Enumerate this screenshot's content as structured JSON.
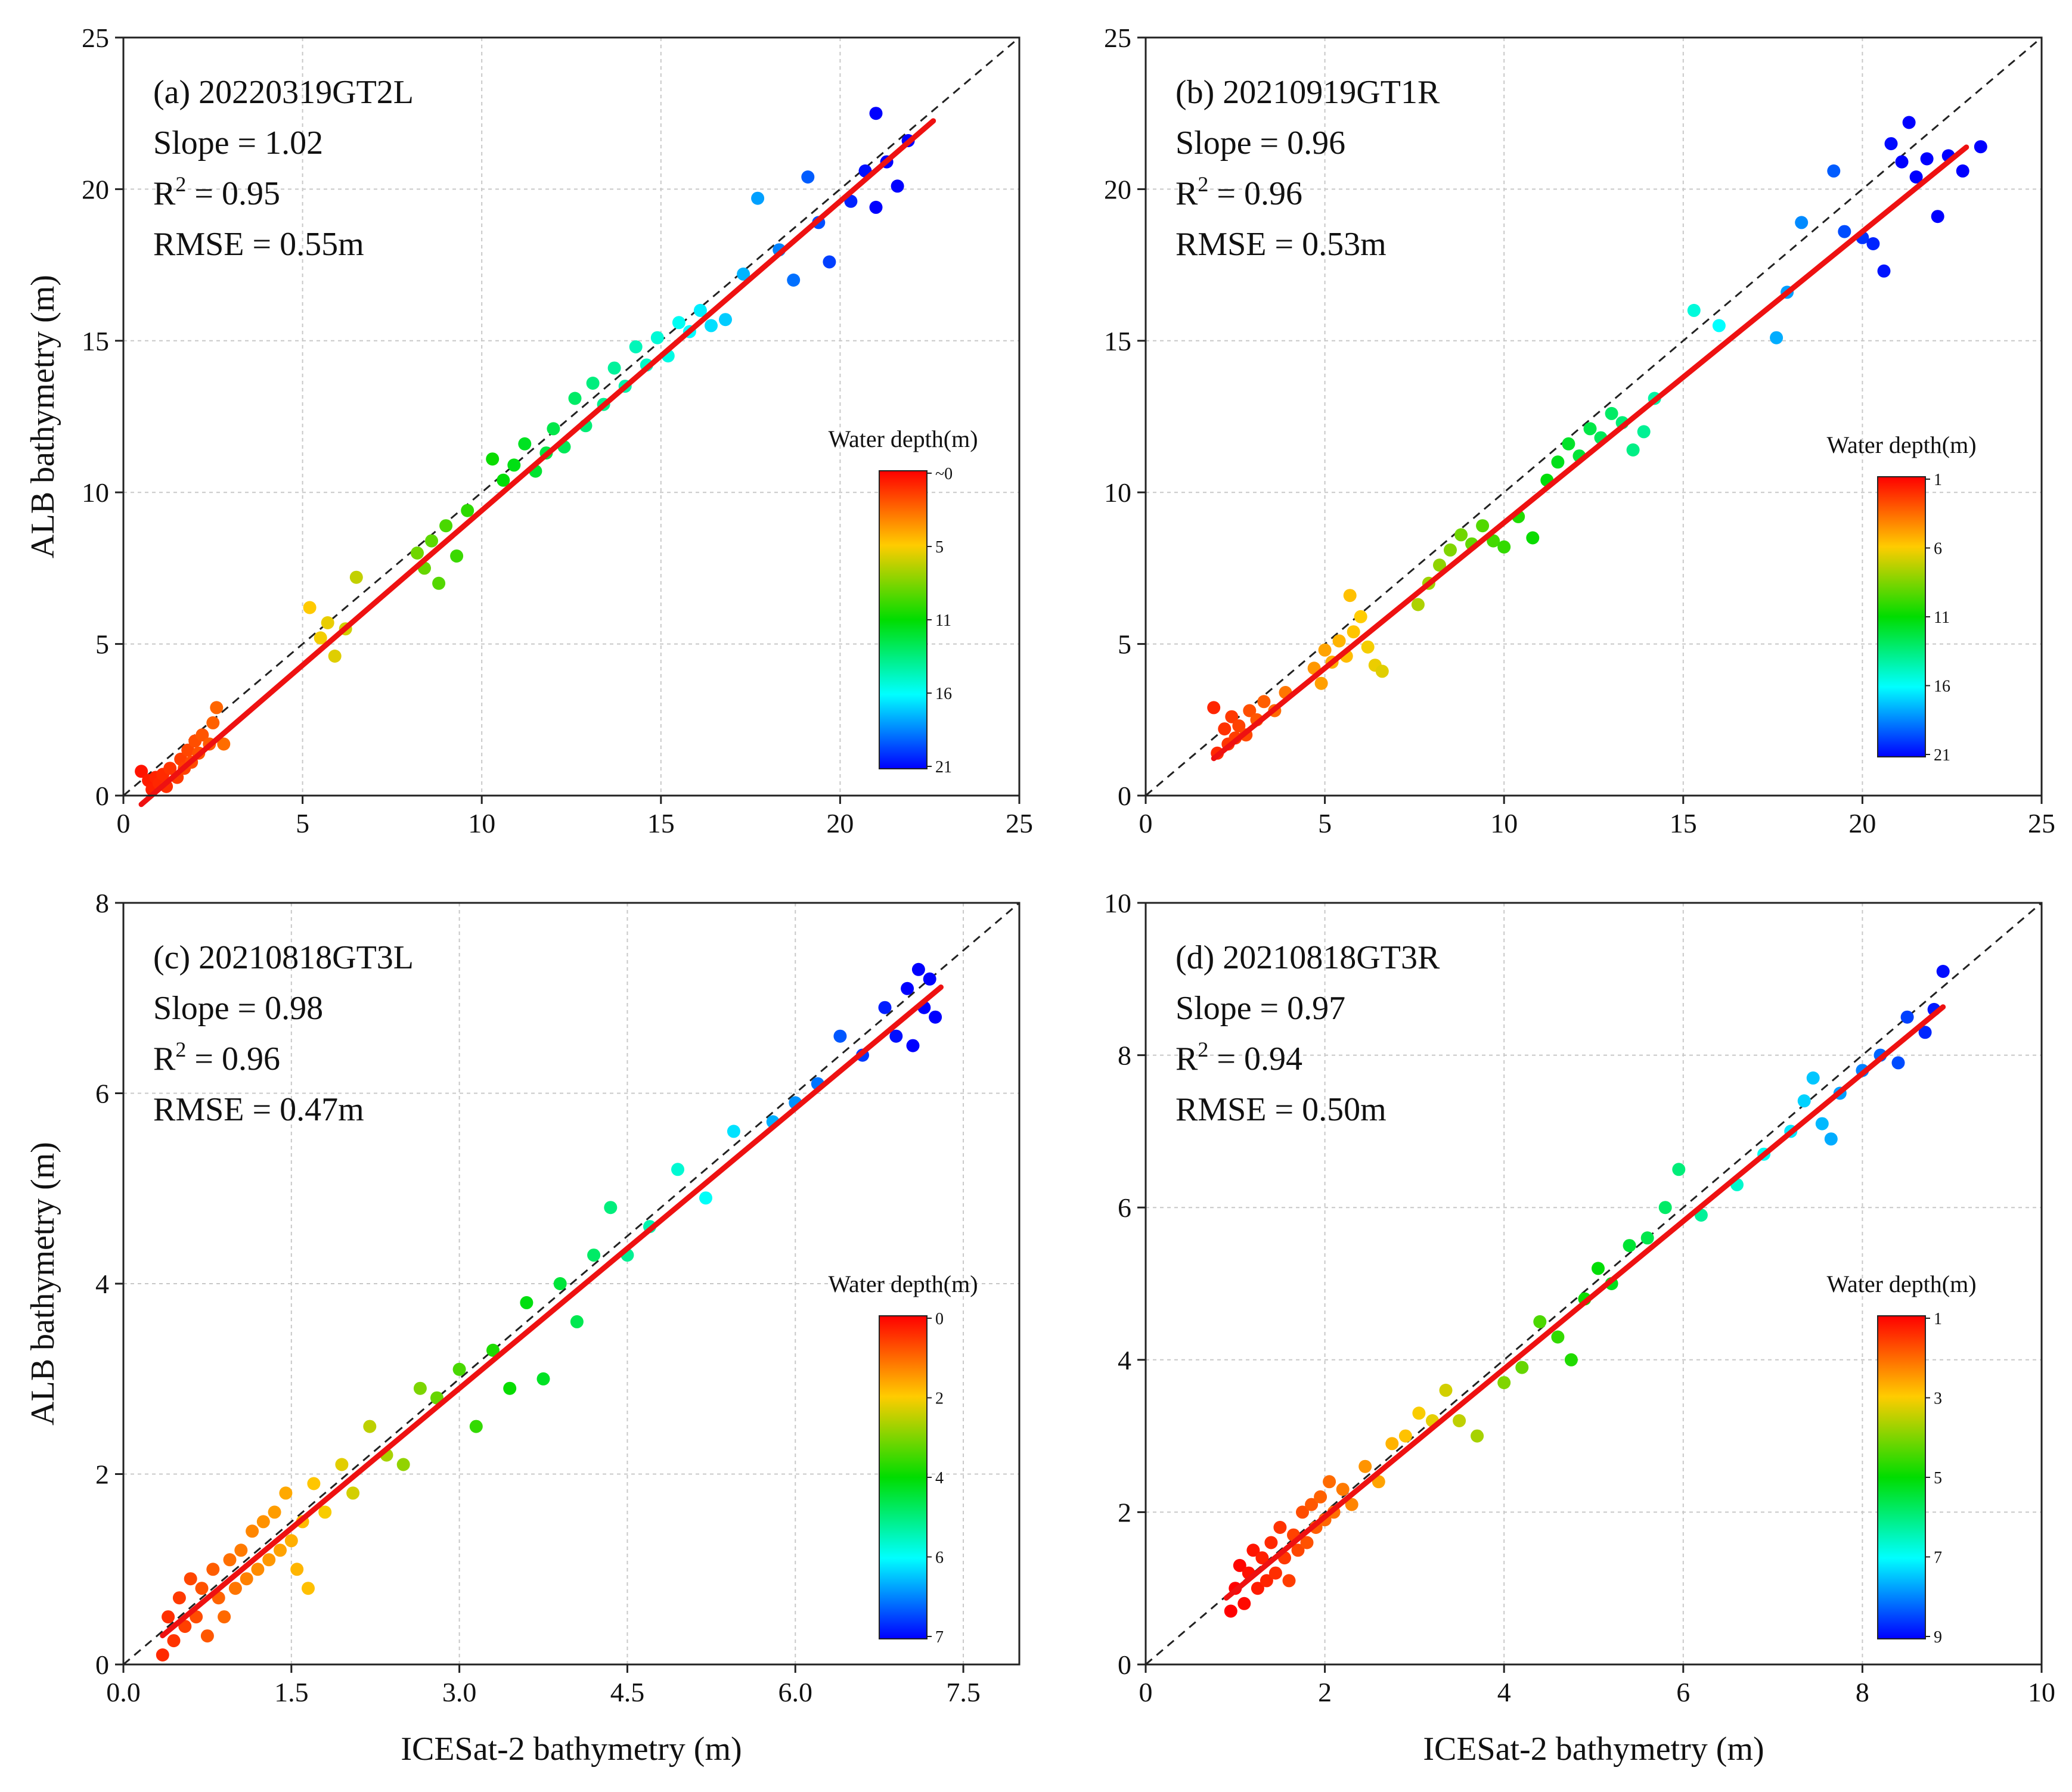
{
  "chart_data": [
    {
      "type": "scatter",
      "panel": "a",
      "label": "(a) 20220319GT2L",
      "stats": {
        "slope": "Slope = 1.02",
        "r2_prefix": "R",
        "r2_value": " = 0.95",
        "rmse": "RMSE = 0.55m"
      },
      "xlabel": "",
      "ylabel": "ALB bathymetry (m)",
      "xlim": [
        0,
        25
      ],
      "ylim": [
        0,
        25
      ],
      "xticks": [
        "0",
        "5",
        "10",
        "15",
        "20",
        "25"
      ],
      "yticks": [
        "0",
        "5",
        "10",
        "15",
        "20",
        "25"
      ],
      "fit": {
        "slope": 1.02,
        "intercept": -0.8,
        "x_range": [
          0.5,
          22.6
        ]
      },
      "colorbar": {
        "title": "Water depth(m)",
        "ticks": [
          "~0",
          "5",
          "11",
          "16",
          "21"
        ],
        "range": [
          0,
          21
        ]
      },
      "points": [
        [
          0.5,
          0.8
        ],
        [
          0.7,
          0.5
        ],
        [
          0.8,
          0.2
        ],
        [
          0.9,
          0.6
        ],
        [
          1.0,
          0.4
        ],
        [
          1.1,
          0.7
        ],
        [
          1.2,
          0.3
        ],
        [
          1.3,
          0.9
        ],
        [
          1.5,
          0.6
        ],
        [
          1.6,
          1.2
        ],
        [
          1.7,
          0.9
        ],
        [
          1.8,
          1.5
        ],
        [
          1.9,
          1.1
        ],
        [
          2.0,
          1.8
        ],
        [
          2.1,
          1.4
        ],
        [
          2.2,
          2.0
        ],
        [
          2.4,
          1.7
        ],
        [
          2.5,
          2.4
        ],
        [
          2.6,
          2.9
        ],
        [
          2.8,
          1.7
        ],
        [
          5.2,
          6.2
        ],
        [
          5.5,
          5.2
        ],
        [
          5.7,
          5.7
        ],
        [
          5.9,
          4.6
        ],
        [
          6.2,
          5.5
        ],
        [
          6.5,
          7.2
        ],
        [
          8.2,
          8.0
        ],
        [
          8.4,
          7.5
        ],
        [
          8.6,
          8.4
        ],
        [
          8.8,
          7.0
        ],
        [
          9.0,
          8.9
        ],
        [
          9.3,
          7.9
        ],
        [
          9.6,
          9.4
        ],
        [
          10.3,
          11.1
        ],
        [
          10.6,
          10.4
        ],
        [
          10.9,
          10.9
        ],
        [
          11.2,
          11.6
        ],
        [
          11.5,
          10.7
        ],
        [
          11.8,
          11.3
        ],
        [
          12.0,
          12.1
        ],
        [
          12.3,
          11.5
        ],
        [
          12.6,
          13.1
        ],
        [
          12.9,
          12.2
        ],
        [
          13.1,
          13.6
        ],
        [
          13.4,
          12.9
        ],
        [
          13.7,
          14.1
        ],
        [
          14.0,
          13.5
        ],
        [
          14.3,
          14.8
        ],
        [
          14.6,
          14.2
        ],
        [
          14.9,
          15.1
        ],
        [
          15.2,
          14.5
        ],
        [
          15.5,
          15.6
        ],
        [
          15.8,
          15.3
        ],
        [
          16.1,
          16.0
        ],
        [
          16.4,
          15.5
        ],
        [
          16.8,
          15.7
        ],
        [
          17.3,
          17.2
        ],
        [
          17.7,
          19.7
        ],
        [
          18.3,
          18.0
        ],
        [
          18.7,
          17.0
        ],
        [
          19.1,
          20.4
        ],
        [
          19.4,
          18.9
        ],
        [
          19.7,
          17.6
        ],
        [
          20.3,
          19.6
        ],
        [
          20.7,
          20.6
        ],
        [
          21.0,
          19.4
        ],
        [
          21.3,
          20.9
        ],
        [
          21.6,
          20.1
        ],
        [
          21.9,
          21.6
        ],
        [
          21.0,
          22.5
        ]
      ]
    },
    {
      "type": "scatter",
      "panel": "b",
      "label": "(b) 20210919GT1R",
      "stats": {
        "slope": "Slope = 0.96",
        "r2_prefix": "R",
        "r2_value": " = 0.96",
        "rmse": "RMSE = 0.53m"
      },
      "xlabel": "",
      "ylabel": "",
      "xlim": [
        0,
        25
      ],
      "ylim": [
        0,
        25
      ],
      "xticks": [
        "0",
        "5",
        "10",
        "15",
        "20",
        "25"
      ],
      "yticks": [
        "0",
        "5",
        "10",
        "15",
        "20",
        "25"
      ],
      "fit": {
        "slope": 0.96,
        "intercept": -0.6,
        "x_range": [
          1.9,
          22.9
        ]
      },
      "colorbar": {
        "title": "Water depth(m)",
        "ticks": [
          "1",
          "6",
          "11",
          "16",
          "21"
        ],
        "range": [
          1,
          21
        ]
      },
      "points": [
        [
          1.9,
          2.9
        ],
        [
          2.0,
          1.4
        ],
        [
          2.2,
          2.2
        ],
        [
          2.3,
          1.7
        ],
        [
          2.4,
          2.6
        ],
        [
          2.5,
          1.9
        ],
        [
          2.6,
          2.3
        ],
        [
          2.8,
          2.0
        ],
        [
          2.9,
          2.8
        ],
        [
          3.1,
          2.5
        ],
        [
          3.3,
          3.1
        ],
        [
          3.6,
          2.8
        ],
        [
          3.9,
          3.4
        ],
        [
          4.7,
          4.2
        ],
        [
          4.9,
          3.7
        ],
        [
          5.0,
          4.8
        ],
        [
          5.2,
          4.4
        ],
        [
          5.4,
          5.1
        ],
        [
          5.6,
          4.6
        ],
        [
          5.8,
          5.4
        ],
        [
          6.0,
          5.9
        ],
        [
          6.2,
          4.9
        ],
        [
          6.4,
          4.3
        ],
        [
          6.6,
          4.1
        ],
        [
          5.7,
          6.6
        ],
        [
          7.6,
          6.3
        ],
        [
          7.9,
          7.0
        ],
        [
          8.2,
          7.6
        ],
        [
          8.5,
          8.1
        ],
        [
          8.8,
          8.6
        ],
        [
          9.1,
          8.3
        ],
        [
          9.4,
          8.9
        ],
        [
          9.7,
          8.4
        ],
        [
          10.0,
          8.2
        ],
        [
          10.4,
          9.2
        ],
        [
          10.8,
          8.5
        ],
        [
          11.2,
          10.4
        ],
        [
          11.5,
          11.0
        ],
        [
          11.8,
          11.6
        ],
        [
          12.1,
          11.2
        ],
        [
          12.4,
          12.1
        ],
        [
          12.7,
          11.8
        ],
        [
          13.0,
          12.6
        ],
        [
          13.3,
          12.3
        ],
        [
          13.6,
          11.4
        ],
        [
          13.9,
          12.0
        ],
        [
          14.2,
          13.1
        ],
        [
          15.3,
          16.0
        ],
        [
          16.0,
          15.5
        ],
        [
          17.6,
          15.1
        ],
        [
          17.9,
          16.6
        ],
        [
          18.3,
          18.9
        ],
        [
          19.2,
          20.6
        ],
        [
          19.5,
          18.6
        ],
        [
          20.0,
          18.4
        ],
        [
          20.3,
          18.2
        ],
        [
          20.6,
          17.3
        ],
        [
          20.8,
          21.5
        ],
        [
          21.1,
          20.9
        ],
        [
          21.3,
          22.2
        ],
        [
          21.5,
          20.4
        ],
        [
          21.8,
          21.0
        ],
        [
          22.1,
          19.1
        ],
        [
          22.4,
          21.1
        ],
        [
          22.8,
          20.6
        ],
        [
          23.3,
          21.4
        ]
      ]
    },
    {
      "type": "scatter",
      "panel": "c",
      "label": "(c) 20210818GT3L",
      "stats": {
        "slope": "Slope = 0.98",
        "r2_prefix": "R",
        "r2_value": " = 0.96",
        "rmse": "RMSE = 0.47m"
      },
      "xlabel": "ICESat-2 bathymetry (m)",
      "ylabel": "ALB bathymetry (m)",
      "xlim": [
        0,
        8.0
      ],
      "ylim": [
        0,
        8
      ],
      "xticks": [
        "0.0",
        "1.5",
        "3.0",
        "4.5",
        "6.0",
        "7.5"
      ],
      "yticks": [
        "0",
        "2",
        "4",
        "6",
        "8"
      ],
      "fit": {
        "slope": 0.98,
        "intercept": -0.04,
        "x_range": [
          0.35,
          7.3
        ]
      },
      "colorbar": {
        "title": "Water depth(m)",
        "ticks": [
          "0",
          "2",
          "4",
          "6",
          "7"
        ],
        "range": [
          0,
          7
        ]
      },
      "points": [
        [
          0.35,
          0.1
        ],
        [
          0.4,
          0.5
        ],
        [
          0.45,
          0.25
        ],
        [
          0.5,
          0.7
        ],
        [
          0.55,
          0.4
        ],
        [
          0.6,
          0.9
        ],
        [
          0.65,
          0.5
        ],
        [
          0.7,
          0.8
        ],
        [
          0.75,
          0.3
        ],
        [
          0.8,
          1.0
        ],
        [
          0.85,
          0.7
        ],
        [
          0.9,
          0.5
        ],
        [
          0.95,
          1.1
        ],
        [
          1.0,
          0.8
        ],
        [
          1.05,
          1.2
        ],
        [
          1.1,
          0.9
        ],
        [
          1.15,
          1.4
        ],
        [
          1.2,
          1.0
        ],
        [
          1.25,
          1.5
        ],
        [
          1.3,
          1.1
        ],
        [
          1.35,
          1.6
        ],
        [
          1.4,
          1.2
        ],
        [
          1.45,
          1.8
        ],
        [
          1.5,
          1.3
        ],
        [
          1.55,
          1.0
        ],
        [
          1.6,
          1.5
        ],
        [
          1.65,
          0.8
        ],
        [
          1.7,
          1.9
        ],
        [
          1.8,
          1.6
        ],
        [
          1.95,
          2.1
        ],
        [
          2.05,
          1.8
        ],
        [
          2.2,
          2.5
        ],
        [
          2.35,
          2.2
        ],
        [
          2.5,
          2.1
        ],
        [
          2.65,
          2.9
        ],
        [
          2.8,
          2.8
        ],
        [
          3.0,
          3.1
        ],
        [
          3.15,
          2.5
        ],
        [
          3.3,
          3.3
        ],
        [
          3.45,
          2.9
        ],
        [
          3.6,
          3.8
        ],
        [
          3.75,
          3.0
        ],
        [
          3.9,
          4.0
        ],
        [
          4.05,
          3.6
        ],
        [
          4.2,
          4.3
        ],
        [
          4.35,
          4.8
        ],
        [
          4.5,
          4.3
        ],
        [
          4.7,
          4.6
        ],
        [
          4.95,
          5.2
        ],
        [
          5.2,
          4.9
        ],
        [
          5.45,
          5.6
        ],
        [
          5.8,
          5.7
        ],
        [
          6.0,
          5.9
        ],
        [
          6.2,
          6.1
        ],
        [
          6.4,
          6.6
        ],
        [
          6.6,
          6.4
        ],
        [
          6.8,
          6.9
        ],
        [
          6.9,
          6.6
        ],
        [
          7.0,
          7.1
        ],
        [
          7.05,
          6.5
        ],
        [
          7.1,
          7.3
        ],
        [
          7.15,
          6.9
        ],
        [
          7.2,
          7.2
        ],
        [
          7.25,
          6.8
        ]
      ]
    },
    {
      "type": "scatter",
      "panel": "d",
      "label": "(d) 20210818GT3R",
      "stats": {
        "slope": "Slope = 0.97",
        "r2_prefix": "R",
        "r2_value": " = 0.94",
        "rmse": "RMSE = 0.50m"
      },
      "xlabel": "ICESat-2 bathymetry (m)",
      "ylabel": "",
      "xlim": [
        0,
        10
      ],
      "ylim": [
        0,
        10
      ],
      "xticks": [
        "0",
        "2",
        "4",
        "6",
        "8",
        "10"
      ],
      "yticks": [
        "0",
        "2",
        "4",
        "6",
        "8",
        "10"
      ],
      "fit": {
        "slope": 0.97,
        "intercept": -0.0,
        "x_range": [
          0.9,
          8.9
        ]
      },
      "colorbar": {
        "title": "Water depth(m)",
        "ticks": [
          "1",
          "3",
          "5",
          "7",
          "9"
        ],
        "range": [
          1,
          9
        ]
      },
      "points": [
        [
          0.95,
          0.7
        ],
        [
          1.0,
          1.0
        ],
        [
          1.05,
          1.3
        ],
        [
          1.1,
          0.8
        ],
        [
          1.15,
          1.2
        ],
        [
          1.2,
          1.5
        ],
        [
          1.25,
          1.0
        ],
        [
          1.3,
          1.4
        ],
        [
          1.35,
          1.1
        ],
        [
          1.4,
          1.6
        ],
        [
          1.45,
          1.2
        ],
        [
          1.5,
          1.8
        ],
        [
          1.55,
          1.4
        ],
        [
          1.6,
          1.1
        ],
        [
          1.65,
          1.7
        ],
        [
          1.7,
          1.5
        ],
        [
          1.75,
          2.0
        ],
        [
          1.8,
          1.6
        ],
        [
          1.85,
          2.1
        ],
        [
          1.9,
          1.8
        ],
        [
          1.95,
          2.2
        ],
        [
          2.0,
          1.9
        ],
        [
          2.05,
          2.4
        ],
        [
          2.1,
          2.0
        ],
        [
          2.2,
          2.3
        ],
        [
          2.3,
          2.1
        ],
        [
          2.45,
          2.6
        ],
        [
          2.6,
          2.4
        ],
        [
          2.75,
          2.9
        ],
        [
          2.9,
          3.0
        ],
        [
          3.05,
          3.3
        ],
        [
          3.2,
          3.2
        ],
        [
          3.35,
          3.6
        ],
        [
          3.5,
          3.2
        ],
        [
          3.7,
          3.0
        ],
        [
          4.0,
          3.7
        ],
        [
          4.2,
          3.9
        ],
        [
          4.4,
          4.5
        ],
        [
          4.6,
          4.3
        ],
        [
          4.75,
          4.0
        ],
        [
          4.9,
          4.8
        ],
        [
          5.05,
          5.2
        ],
        [
          5.2,
          5.0
        ],
        [
          5.4,
          5.5
        ],
        [
          5.6,
          5.6
        ],
        [
          5.8,
          6.0
        ],
        [
          5.95,
          6.5
        ],
        [
          6.2,
          5.9
        ],
        [
          6.6,
          6.3
        ],
        [
          6.9,
          6.7
        ],
        [
          7.2,
          7.0
        ],
        [
          7.35,
          7.4
        ],
        [
          7.45,
          7.7
        ],
        [
          7.55,
          7.1
        ],
        [
          7.65,
          6.9
        ],
        [
          7.75,
          7.5
        ],
        [
          8.0,
          7.8
        ],
        [
          8.2,
          8.0
        ],
        [
          8.4,
          7.9
        ],
        [
          8.5,
          8.5
        ],
        [
          8.7,
          8.3
        ],
        [
          8.8,
          8.6
        ],
        [
          8.9,
          9.1
        ]
      ]
    }
  ]
}
